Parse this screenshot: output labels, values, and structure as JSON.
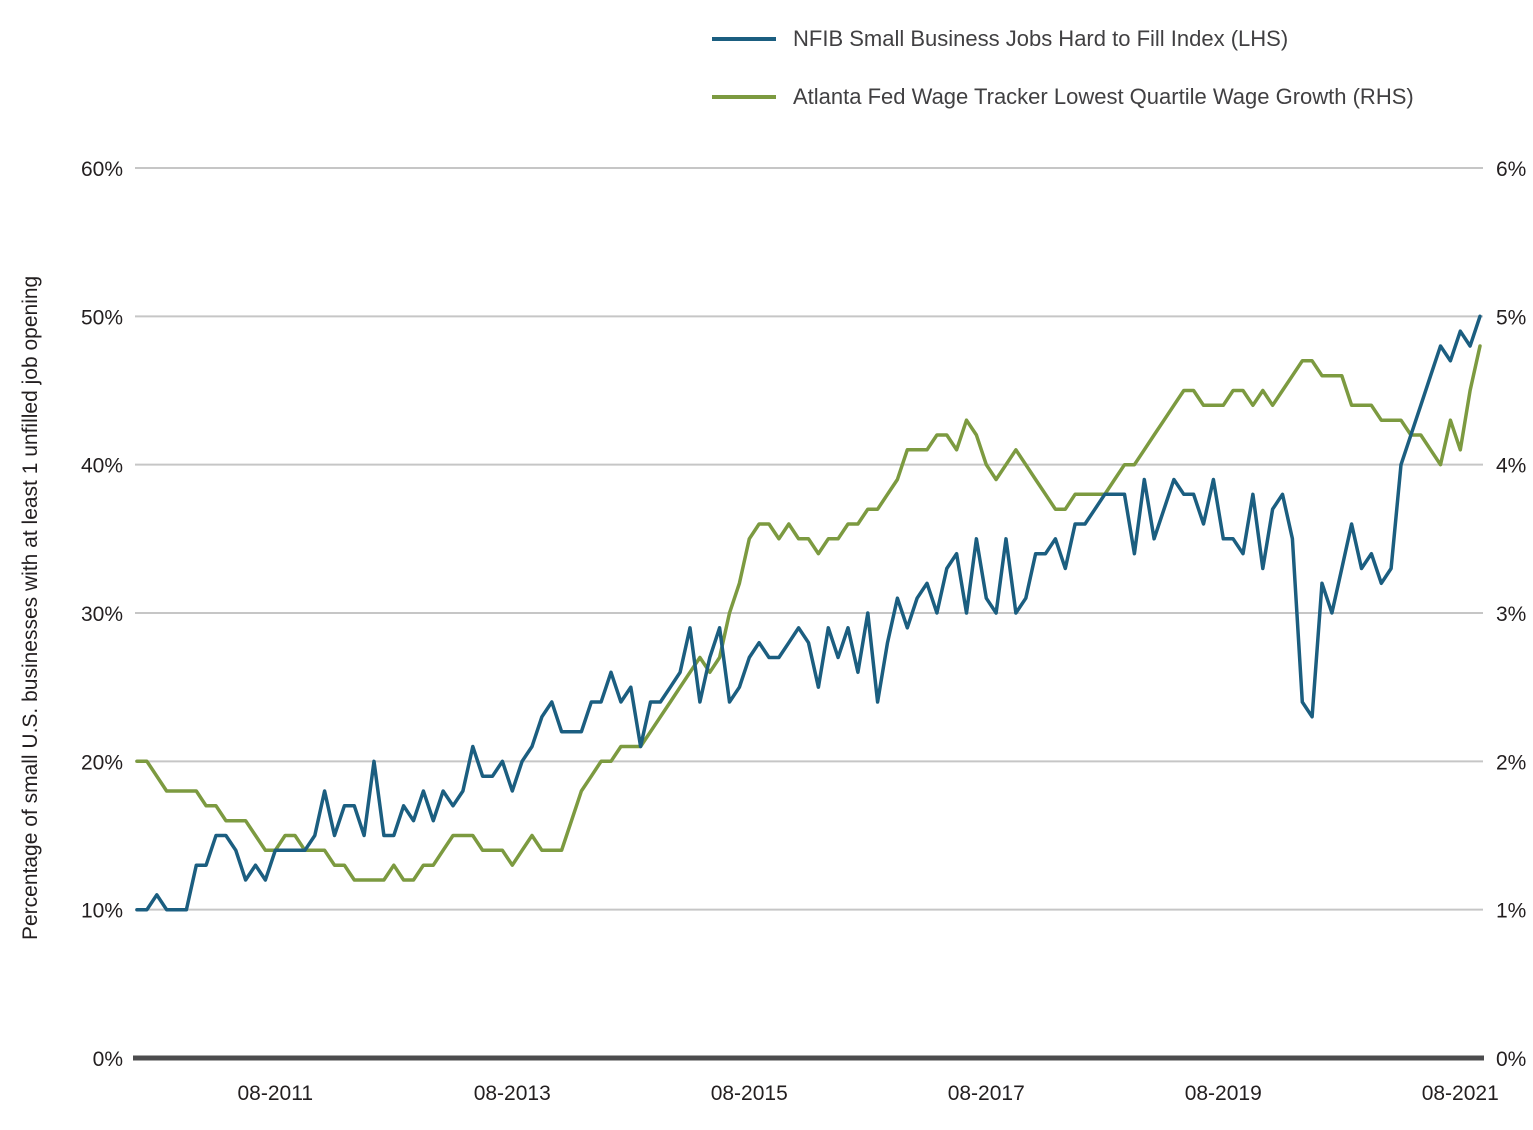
{
  "legend": {
    "items": [
      {
        "label": "NFIB Small Business Jobs Hard to Fill Index (LHS)",
        "color": "#1B5E80"
      },
      {
        "label": "Atlanta Fed Wage Tracker Lowest Quartile Wage Growth (RHS)",
        "color": "#7C9A40"
      }
    ]
  },
  "left_axis": {
    "title": "Percentage of small U.S. businesses with at least 1 unfilled job opening",
    "tick_labels": [
      "0%",
      "10%",
      "20%",
      "30%",
      "40%",
      "50%",
      "60%"
    ],
    "tick_values": [
      0,
      10,
      20,
      30,
      40,
      50,
      60
    ],
    "range": [
      0,
      60
    ]
  },
  "right_axis": {
    "tick_labels": [
      "0%",
      "1%",
      "2%",
      "3%",
      "4%",
      "5%",
      "6%"
    ],
    "tick_values": [
      0,
      1,
      2,
      3,
      4,
      5,
      6
    ],
    "range": [
      0,
      6
    ]
  },
  "x_axis": {
    "tick_labels": [
      "08-2011",
      "08-2013",
      "08-2015",
      "08-2017",
      "08-2019",
      "08-2021"
    ],
    "tick_months": [
      "2011-08",
      "2013-08",
      "2015-08",
      "2017-08",
      "2019-08",
      "2021-08"
    ]
  },
  "chart_data": {
    "type": "line",
    "title": "",
    "grid": true,
    "legend_position": "top-center",
    "left_ylim": [
      0,
      60
    ],
    "right_ylim": [
      0,
      6
    ],
    "x": [
      "2010-06",
      "2010-07",
      "2010-08",
      "2010-09",
      "2010-10",
      "2010-11",
      "2010-12",
      "2011-01",
      "2011-02",
      "2011-03",
      "2011-04",
      "2011-05",
      "2011-06",
      "2011-07",
      "2011-08",
      "2011-09",
      "2011-10",
      "2011-11",
      "2011-12",
      "2012-01",
      "2012-02",
      "2012-03",
      "2012-04",
      "2012-05",
      "2012-06",
      "2012-07",
      "2012-08",
      "2012-09",
      "2012-10",
      "2012-11",
      "2012-12",
      "2013-01",
      "2013-02",
      "2013-03",
      "2013-04",
      "2013-05",
      "2013-06",
      "2013-07",
      "2013-08",
      "2013-09",
      "2013-10",
      "2013-11",
      "2013-12",
      "2014-01",
      "2014-02",
      "2014-03",
      "2014-04",
      "2014-05",
      "2014-06",
      "2014-07",
      "2014-08",
      "2014-09",
      "2014-10",
      "2014-11",
      "2014-12",
      "2015-01",
      "2015-02",
      "2015-03",
      "2015-04",
      "2015-05",
      "2015-06",
      "2015-07",
      "2015-08",
      "2015-09",
      "2015-10",
      "2015-11",
      "2015-12",
      "2016-01",
      "2016-02",
      "2016-03",
      "2016-04",
      "2016-05",
      "2016-06",
      "2016-07",
      "2016-08",
      "2016-09",
      "2016-10",
      "2016-11",
      "2016-12",
      "2017-01",
      "2017-02",
      "2017-03",
      "2017-04",
      "2017-05",
      "2017-06",
      "2017-07",
      "2017-08",
      "2017-09",
      "2017-10",
      "2017-11",
      "2017-12",
      "2018-01",
      "2018-02",
      "2018-03",
      "2018-04",
      "2018-05",
      "2018-06",
      "2018-07",
      "2018-08",
      "2018-09",
      "2018-10",
      "2018-11",
      "2018-12",
      "2019-01",
      "2019-02",
      "2019-03",
      "2019-04",
      "2019-05",
      "2019-06",
      "2019-07",
      "2019-08",
      "2019-09",
      "2019-10",
      "2019-11",
      "2019-12",
      "2020-01",
      "2020-02",
      "2020-03",
      "2020-04",
      "2020-05",
      "2020-06",
      "2020-07",
      "2020-08",
      "2020-09",
      "2020-10",
      "2020-11",
      "2020-12",
      "2021-01",
      "2021-02",
      "2021-03",
      "2021-04",
      "2021-05",
      "2021-06",
      "2021-07",
      "2021-08",
      "2021-09",
      "2021-10"
    ],
    "series": [
      {
        "name": "NFIB Small Business Jobs Hard to Fill Index",
        "axis": "left",
        "unit": "%",
        "color": "#1B5E80",
        "values": [
          10,
          10,
          11,
          10,
          10,
          10,
          13,
          13,
          15,
          15,
          14,
          12,
          13,
          12,
          14,
          14,
          14,
          14,
          15,
          18,
          15,
          17,
          17,
          15,
          20,
          15,
          15,
          17,
          16,
          18,
          16,
          18,
          17,
          18,
          21,
          19,
          19,
          20,
          18,
          20,
          21,
          23,
          24,
          22,
          22,
          22,
          24,
          24,
          26,
          24,
          25,
          21,
          24,
          24,
          25,
          26,
          29,
          24,
          27,
          29,
          24,
          25,
          27,
          28,
          27,
          27,
          28,
          29,
          28,
          25,
          29,
          27,
          29,
          26,
          30,
          24,
          28,
          31,
          29,
          31,
          32,
          30,
          33,
          34,
          30,
          35,
          31,
          30,
          35,
          30,
          31,
          34,
          34,
          35,
          33,
          36,
          36,
          37,
          38,
          38,
          38,
          34,
          39,
          35,
          37,
          39,
          38,
          38,
          36,
          39,
          35,
          35,
          34,
          38,
          33,
          37,
          38,
          35,
          24,
          23,
          32,
          30,
          33,
          36,
          33,
          34,
          32,
          33,
          40,
          42,
          44,
          46,
          48,
          47,
          49,
          48,
          50
        ]
      },
      {
        "name": "Atlanta Fed Wage Tracker Lowest Quartile Wage Growth",
        "axis": "right",
        "unit": "%",
        "color": "#7C9A40",
        "values": [
          2.0,
          2.0,
          1.9,
          1.8,
          1.8,
          1.8,
          1.8,
          1.7,
          1.7,
          1.6,
          1.6,
          1.6,
          1.5,
          1.4,
          1.4,
          1.5,
          1.5,
          1.4,
          1.4,
          1.4,
          1.3,
          1.3,
          1.2,
          1.2,
          1.2,
          1.2,
          1.3,
          1.2,
          1.2,
          1.3,
          1.3,
          1.4,
          1.5,
          1.5,
          1.5,
          1.4,
          1.4,
          1.4,
          1.3,
          1.4,
          1.5,
          1.4,
          1.4,
          1.4,
          1.6,
          1.8,
          1.9,
          2.0,
          2.0,
          2.1,
          2.1,
          2.1,
          2.2,
          2.3,
          2.4,
          2.5,
          2.6,
          2.7,
          2.6,
          2.7,
          3.0,
          3.2,
          3.5,
          3.6,
          3.6,
          3.5,
          3.6,
          3.5,
          3.5,
          3.4,
          3.5,
          3.5,
          3.6,
          3.6,
          3.7,
          3.7,
          3.8,
          3.9,
          4.1,
          4.1,
          4.1,
          4.2,
          4.2,
          4.1,
          4.3,
          4.2,
          4.0,
          3.9,
          4.0,
          4.1,
          4.0,
          3.9,
          3.8,
          3.7,
          3.7,
          3.8,
          3.8,
          3.8,
          3.8,
          3.9,
          4.0,
          4.0,
          4.1,
          4.2,
          4.3,
          4.4,
          4.5,
          4.5,
          4.4,
          4.4,
          4.4,
          4.5,
          4.5,
          4.4,
          4.5,
          4.4,
          4.5,
          4.6,
          4.7,
          4.7,
          4.6,
          4.6,
          4.6,
          4.4,
          4.4,
          4.4,
          4.3,
          4.3,
          4.3,
          4.2,
          4.2,
          4.1,
          4.0,
          4.3,
          4.1,
          4.5,
          4.8
        ]
      }
    ]
  }
}
